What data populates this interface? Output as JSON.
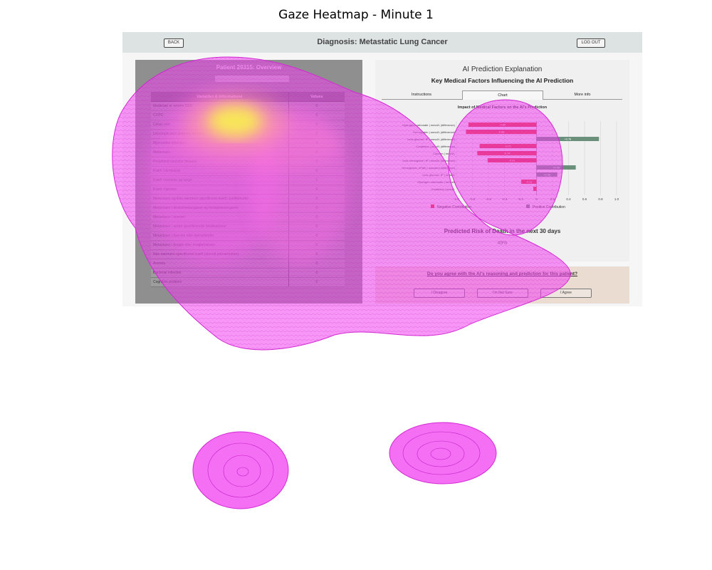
{
  "figure": {
    "title": "Gaze Heatmap - Minute 1"
  },
  "app": {
    "back_label": "BACK",
    "logout_label": "LOG OUT",
    "diagnosis_title": "Diagnosis: Metastatic Lung Cancer"
  },
  "patient": {
    "title": "Patient 29315: Overview",
    "columns": [
      "Variables & Informations",
      "Values"
    ],
    "rows": [
      {
        "label": "Moderate or severe CKD",
        "value": "0"
      },
      {
        "label": "COPD",
        "value": "0"
      },
      {
        "label": "Celiac sick",
        "value": "0"
      },
      {
        "label": "Uncomplicated diabetes mellitus",
        "value": "0"
      },
      {
        "label": "Myocardial infarction",
        "value": "0"
      },
      {
        "label": "Metastasis",
        "value": "0"
      },
      {
        "label": "Peripheral vascular disease",
        "value": "0"
      },
      {
        "label": "Kræft i tarmkanal",
        "value": "0"
      },
      {
        "label": "Kræft i bronkier og lunge",
        "value": "1"
      },
      {
        "label": "Kræft i hjernen",
        "value": "0"
      },
      {
        "label": "Metastaser og ikke nærmere specificeret kræft i lymfeknuder",
        "value": "0"
      },
      {
        "label": "Metastaser i åndedrætsorganer og fordøjelsesorganer",
        "value": "0"
      },
      {
        "label": "Metastaser i leveren",
        "value": "0"
      },
      {
        "label": "Metastaser i andre specificerede lokalisationer",
        "value": "0"
      },
      {
        "label": "Metastaser i hjernen eller hjernehinder",
        "value": "0"
      },
      {
        "label": "Metastaser i knogle eller knoglemarven",
        "value": "0"
      },
      {
        "label": "Ikke nærmere specificeret kræft (ukendt primærtumor)",
        "value": "0"
      },
      {
        "label": "Anemia",
        "value": "0"
      },
      {
        "label": "Bacterial infection",
        "value": "0"
      },
      {
        "label": "Cognitive problem",
        "value": "0"
      }
    ]
  },
  "ai": {
    "title": "AI Prediction Explanation",
    "subtitle": "Key Medical Factors Influencing the AI Prediction",
    "tabs": [
      "Instructions",
      "Chart",
      "More info"
    ],
    "active_tab": "Chart",
    "risk_label": "Predicted Risk of Death in the next 30 days",
    "risk_value": "49%",
    "question": "Do you agree with the AI's reasoning and prediction for this patient?",
    "choices": [
      "I Disagree",
      "I'm Not Sure",
      "I Agree"
    ]
  },
  "chart_data": {
    "type": "bar",
    "orientation": "horizontal",
    "title": "Impact of Medical Factors on the AI's Prediction",
    "categories": [
      "Hydrogen carbonate | mmol/L (difference)",
      "Hemoglobin | mmol/L (difference)",
      "Ionic glucose, fP | mmol/L (difference)",
      "Creatinine | umol/L (difference)",
      "Calcium | mmol/L",
      "Ionic hemoglobin, fP | mmol/L (difference)",
      "Hemoglobin, ePath | unscaled (difference)",
      "Ionic glucose, fP | mmol/L",
      "Hydrogen carbonate | mmol/L",
      "Creatinine | umol/L"
    ],
    "values": [
      -0.85,
      -0.88,
      0.78,
      -0.71,
      -0.74,
      -0.61,
      0.49,
      0.26,
      -0.19,
      -0.04
    ],
    "value_labels": [
      "-0.85",
      "-0.88",
      "+0.78",
      "-0.71",
      "-0.74",
      "-0.61",
      "+0.49",
      "+0.26",
      "-0.19",
      ""
    ],
    "xlim": [
      -1.0,
      1.0
    ],
    "xticks": [
      "-1.0",
      "-0.8",
      "-0.6",
      "-0.4",
      "-0.2",
      "0",
      "0.2",
      "0.4",
      "0.6",
      "0.8",
      "1.0"
    ],
    "legend": [
      {
        "name": "Negative Contribution",
        "color": "#e0342f"
      },
      {
        "name": "Positive Contribution",
        "color": "#6a8f7a"
      }
    ],
    "grid": true
  },
  "colors": {
    "negative": "#e0342f",
    "positive": "#6a8f7a",
    "heat_outer": "#ee33ee",
    "heat_hot": "#f4f03a"
  }
}
